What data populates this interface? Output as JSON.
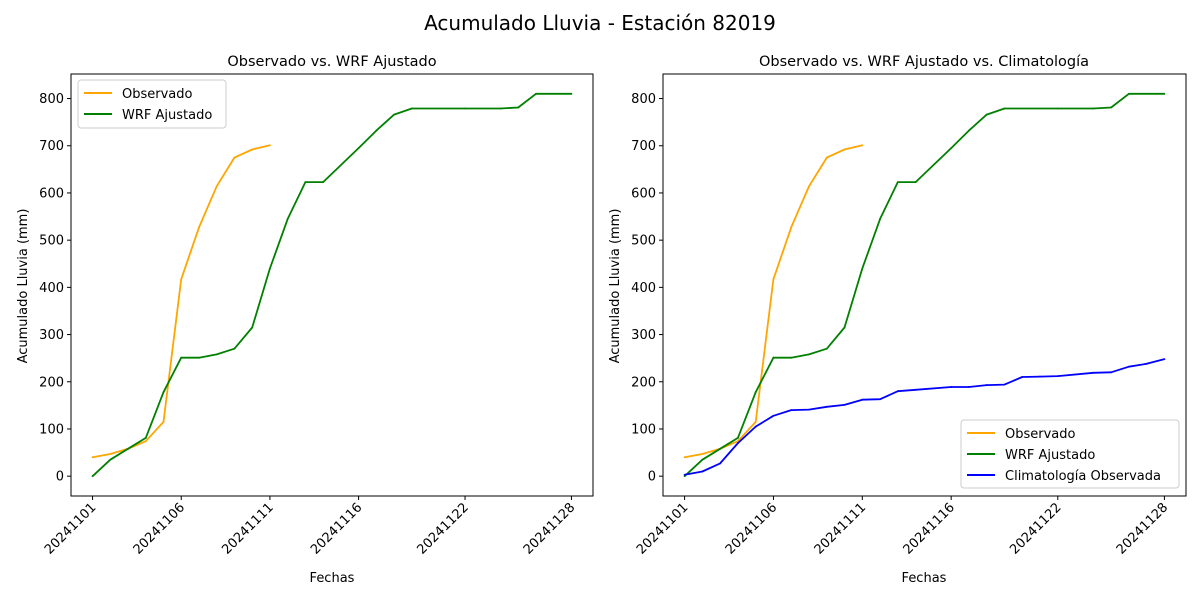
{
  "figure": {
    "suptitle": "Acumulado Lluvia - Estación 82019"
  },
  "chart_data": [
    {
      "type": "line",
      "title": "Observado vs. WRF Ajustado",
      "xlabel": "Fechas",
      "ylabel": "Acumulado Lluvia (mm)",
      "ylim": [
        -42,
        852
      ],
      "yticks": [
        0,
        100,
        200,
        300,
        400,
        500,
        600,
        700,
        800
      ],
      "xtick_labels": [
        "20241101",
        "20241106",
        "20241111",
        "20241116",
        "20241122",
        "20241128"
      ],
      "legend_position": "upper left",
      "series": [
        {
          "name": "Observado",
          "color": "#ffa500",
          "x": [
            "20241101",
            "20241102",
            "20241103",
            "20241104",
            "20241105",
            "20241106",
            "20241107",
            "20241108",
            "20241109",
            "20241110",
            "20241111"
          ],
          "y": [
            40,
            47,
            58,
            74,
            115,
            417,
            527,
            614,
            675,
            692,
            701
          ]
        },
        {
          "name": "WRF Ajustado",
          "color": "#008000",
          "x": [
            "20241101",
            "20241102",
            "20241103",
            "20241104",
            "20241105",
            "20241106",
            "20241107",
            "20241108",
            "20241109",
            "20241110",
            "20241111",
            "20241112",
            "20241113",
            "20241114",
            "20241116",
            "20241117",
            "20241118",
            "20241119",
            "20241122",
            "20241124",
            "20241125",
            "20241126",
            "20241128"
          ],
          "y": [
            0,
            35,
            58,
            81,
            178,
            251,
            251,
            258,
            270,
            315,
            440,
            545,
            623,
            623,
            695,
            732,
            766,
            779,
            779,
            779,
            781,
            810,
            810
          ]
        }
      ]
    },
    {
      "type": "line",
      "title": "Observado vs. WRF Ajustado vs. Climatología",
      "xlabel": "Fechas",
      "ylabel": "Acumulado Lluvia (mm)",
      "ylim": [
        -42,
        852
      ],
      "yticks": [
        0,
        100,
        200,
        300,
        400,
        500,
        600,
        700,
        800
      ],
      "xtick_labels": [
        "20241101",
        "20241106",
        "20241111",
        "20241116",
        "20241122",
        "20241128"
      ],
      "legend_position": "lower right",
      "series": [
        {
          "name": "Observado",
          "color": "#ffa500",
          "x": [
            "20241101",
            "20241102",
            "20241103",
            "20241104",
            "20241105",
            "20241106",
            "20241107",
            "20241108",
            "20241109",
            "20241110",
            "20241111"
          ],
          "y": [
            40,
            47,
            58,
            74,
            115,
            417,
            527,
            614,
            675,
            692,
            701
          ]
        },
        {
          "name": "WRF Ajustado",
          "color": "#008000",
          "x": [
            "20241101",
            "20241102",
            "20241103",
            "20241104",
            "20241105",
            "20241106",
            "20241107",
            "20241108",
            "20241109",
            "20241110",
            "20241111",
            "20241112",
            "20241113",
            "20241114",
            "20241116",
            "20241117",
            "20241118",
            "20241119",
            "20241122",
            "20241124",
            "20241125",
            "20241126",
            "20241128"
          ],
          "y": [
            0,
            35,
            58,
            81,
            178,
            251,
            251,
            258,
            270,
            315,
            440,
            545,
            623,
            623,
            695,
            732,
            766,
            779,
            779,
            779,
            781,
            810,
            810
          ]
        },
        {
          "name": "Climatología Observada",
          "color": "#0000ff",
          "x": [
            "20241101",
            "20241102",
            "20241103",
            "20241104",
            "20241105",
            "20241106",
            "20241107",
            "20241108",
            "20241109",
            "20241110",
            "20241111",
            "20241112",
            "20241113",
            "20241114",
            "20241116",
            "20241117",
            "20241118",
            "20241119",
            "20241120",
            "20241121",
            "20241122",
            "20241124",
            "20241125",
            "20241126",
            "20241127",
            "20241128"
          ],
          "y": [
            3,
            10,
            27,
            70,
            105,
            128,
            140,
            141,
            147,
            151,
            162,
            163,
            180,
            183,
            189,
            189,
            193,
            194,
            210,
            211,
            212,
            219,
            220,
            232,
            238,
            248
          ]
        }
      ]
    }
  ]
}
